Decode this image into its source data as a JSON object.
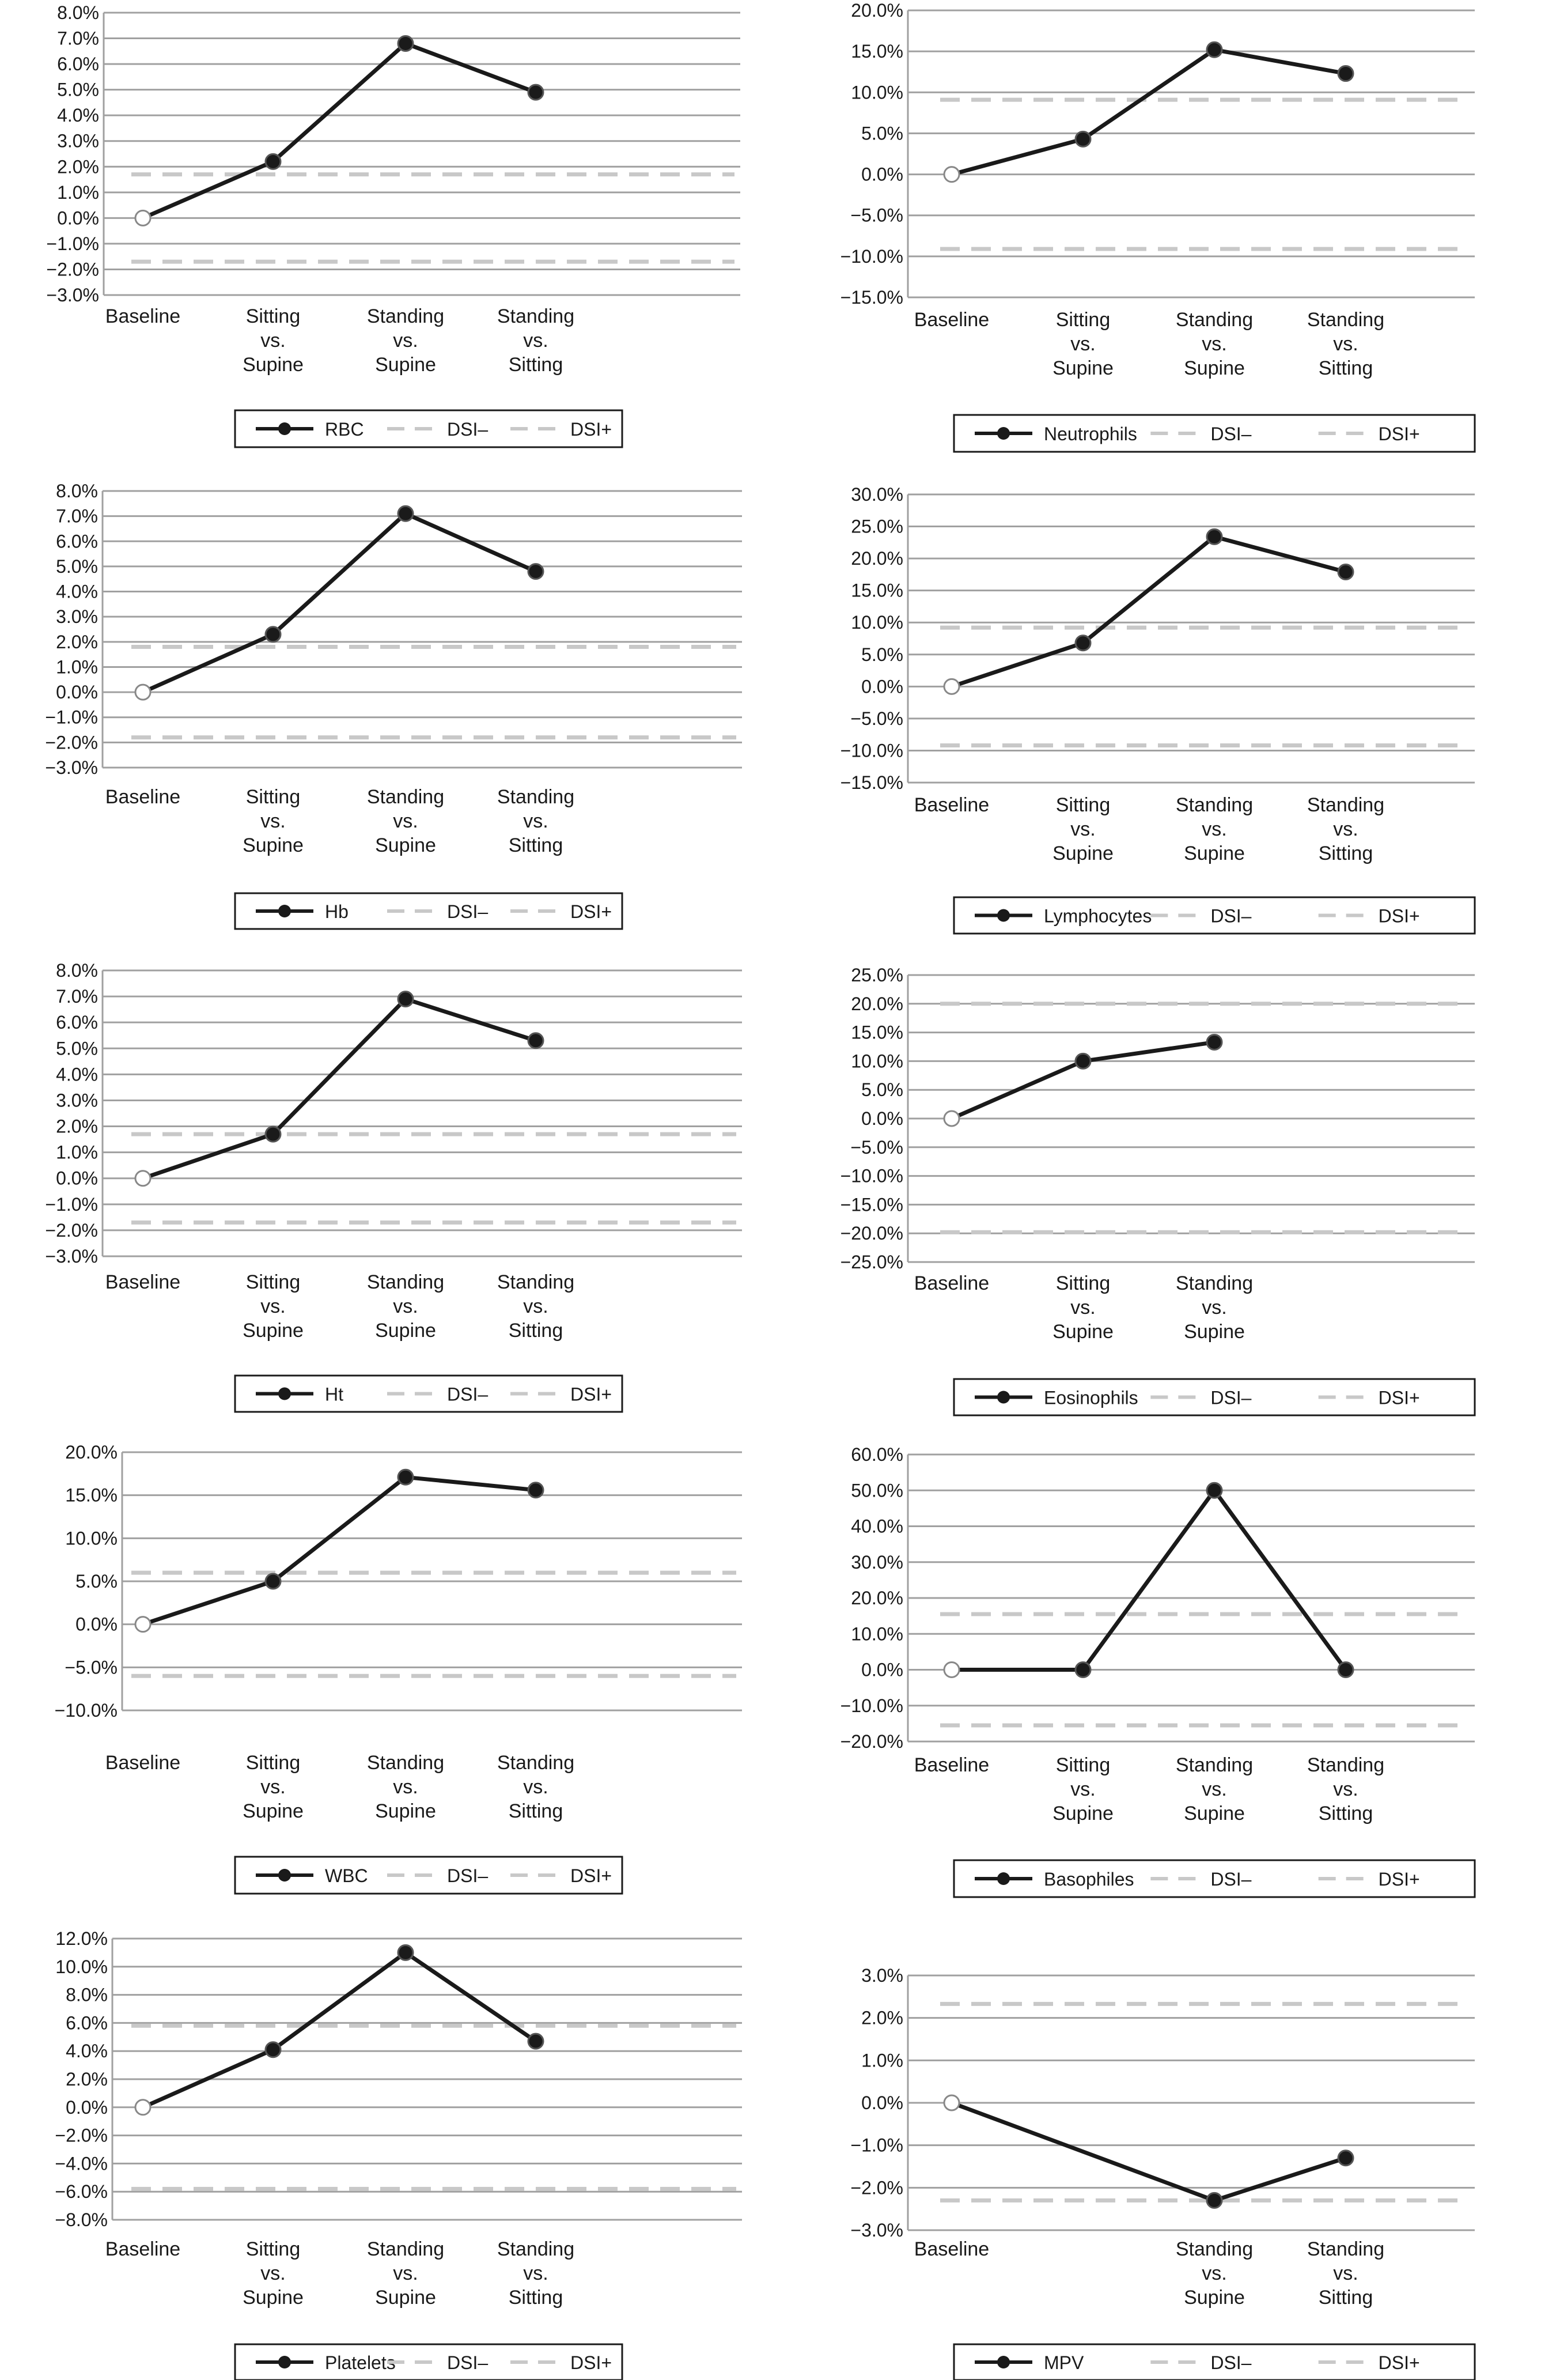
{
  "colors": {
    "series_line": "#1a1a1a",
    "marker_fill": "#1a1a1a",
    "baseline_marker_fill": "#ffffff",
    "dsi_line": "#c8c8c8",
    "gridline": "#a0a0a0",
    "axis_text": "#1a1a1a"
  },
  "chart_data": [
    {
      "type": "line",
      "categories": [
        [
          "Baseline"
        ],
        [
          "Sitting",
          "vs.",
          "Supine"
        ],
        [
          "Standing",
          "vs.",
          "Supine"
        ],
        [
          "Standing",
          "vs.",
          "Sitting"
        ]
      ],
      "series": [
        {
          "name": "RBC",
          "values": [
            0.0,
            2.2,
            6.8,
            4.9
          ]
        }
      ],
      "dsi_minus": -1.7,
      "dsi_plus": 1.7,
      "ylim": [
        -3,
        8
      ],
      "ytick_step": 1,
      "tick_decimals": 1,
      "legend": [
        "RBC",
        "DSI–",
        "DSI+"
      ],
      "grid": true
    },
    {
      "type": "line",
      "categories": [
        [
          "Baseline"
        ],
        [
          "Sitting",
          "vs.",
          "Supine"
        ],
        [
          "Standing",
          "vs.",
          "Supine"
        ],
        [
          "Standing",
          "vs.",
          "Sitting"
        ]
      ],
      "series": [
        {
          "name": "Neutrophils",
          "values": [
            0.0,
            4.3,
            15.2,
            12.3
          ]
        }
      ],
      "dsi_minus": -9.1,
      "dsi_plus": 9.1,
      "ylim": [
        -15,
        20
      ],
      "ytick_step": 5,
      "tick_decimals": 1,
      "legend": [
        "Neutrophils",
        "DSI–",
        "DSI+"
      ],
      "grid": true
    },
    {
      "type": "line",
      "categories": [
        [
          "Baseline"
        ],
        [
          "Sitting",
          "vs.",
          "Supine"
        ],
        [
          "Standing",
          "vs.",
          "Supine"
        ],
        [
          "Standing",
          "vs.",
          "Sitting"
        ]
      ],
      "series": [
        {
          "name": "Hb",
          "values": [
            0.0,
            2.3,
            7.1,
            4.8
          ]
        }
      ],
      "dsi_minus": -1.8,
      "dsi_plus": 1.8,
      "ylim": [
        -3,
        8
      ],
      "ytick_step": 1,
      "tick_decimals": 1,
      "legend": [
        "Hb",
        "DSI–",
        "DSI+"
      ],
      "grid": true
    },
    {
      "type": "line",
      "categories": [
        [
          "Baseline"
        ],
        [
          "Sitting",
          "vs.",
          "Supine"
        ],
        [
          "Standing",
          "vs.",
          "Supine"
        ],
        [
          "Standing",
          "vs.",
          "Sitting"
        ]
      ],
      "series": [
        {
          "name": "Lymphocytes",
          "values": [
            0.0,
            6.8,
            23.4,
            17.9
          ]
        }
      ],
      "dsi_minus": -9.2,
      "dsi_plus": 9.2,
      "ylim": [
        -15,
        30
      ],
      "ytick_step": 5,
      "tick_decimals": 1,
      "legend": [
        "Lymphocytes",
        "DSI–",
        "DSI+"
      ],
      "grid": true
    },
    {
      "type": "line",
      "categories": [
        [
          "Baseline"
        ],
        [
          "Sitting",
          "vs.",
          "Supine"
        ],
        [
          "Standing",
          "vs.",
          "Supine"
        ],
        [
          "Standing",
          "vs.",
          "Sitting"
        ]
      ],
      "series": [
        {
          "name": "Ht",
          "values": [
            0.0,
            1.7,
            6.9,
            5.3
          ]
        }
      ],
      "dsi_minus": -1.7,
      "dsi_plus": 1.7,
      "ylim": [
        -3,
        8
      ],
      "ytick_step": 1,
      "tick_decimals": 1,
      "legend": [
        "Ht",
        "DSI–",
        "DSI+"
      ],
      "grid": true
    },
    {
      "type": "line",
      "categories": [
        [
          "Baseline"
        ],
        [
          "Sitting",
          "vs.",
          "Supine"
        ],
        [
          "Standing",
          "vs.",
          "Supine"
        ]
      ],
      "series": [
        {
          "name": "Eosinophils",
          "values": [
            0.0,
            10.0,
            13.3
          ]
        }
      ],
      "dsi_minus": -19.8,
      "dsi_plus": 20.0,
      "ylim": [
        -25,
        25
      ],
      "ytick_step": 5,
      "tick_decimals": 1,
      "legend": [
        "Eosinophils",
        "DSI–",
        "DSI+"
      ],
      "grid": true
    },
    {
      "type": "line",
      "categories": [
        [
          "Baseline"
        ],
        [
          "Sitting",
          "vs.",
          "Supine"
        ],
        [
          "Standing",
          "vs.",
          "Supine"
        ],
        [
          "Standing",
          "vs.",
          "Sitting"
        ]
      ],
      "series": [
        {
          "name": "WBC",
          "values": [
            0.0,
            5.0,
            17.1,
            15.6
          ]
        }
      ],
      "dsi_minus": -6.0,
      "dsi_plus": 6.0,
      "ylim": [
        -10,
        20
      ],
      "ytick_step": 5,
      "tick_decimals": 1,
      "legend": [
        "WBC",
        "DSI–",
        "DSI+"
      ],
      "grid": true
    },
    {
      "type": "line",
      "categories": [
        [
          "Baseline"
        ],
        [
          "Sitting",
          "vs.",
          "Supine"
        ],
        [
          "Standing",
          "vs.",
          "Supine"
        ],
        [
          "Standing",
          "vs.",
          "Sitting"
        ]
      ],
      "series": [
        {
          "name": "Basophiles",
          "values": [
            0.0,
            0.0,
            50.0,
            0.0
          ]
        }
      ],
      "dsi_minus": -15.5,
      "dsi_plus": 15.5,
      "ylim": [
        -20,
        60
      ],
      "ytick_step": 10,
      "tick_decimals": 1,
      "legend": [
        "Basophiles",
        "DSI–",
        "DSI+"
      ],
      "grid": true
    },
    {
      "type": "line",
      "categories": [
        [
          "Baseline"
        ],
        [
          "Sitting",
          "vs.",
          "Supine"
        ],
        [
          "Standing",
          "vs.",
          "Supine"
        ],
        [
          "Standing",
          "vs.",
          "Sitting"
        ]
      ],
      "series": [
        {
          "name": "Platelets",
          "values": [
            0.0,
            4.1,
            11.0,
            4.7
          ]
        }
      ],
      "dsi_minus": -5.8,
      "dsi_plus": 5.8,
      "ylim": [
        -8,
        12
      ],
      "ytick_step": 2,
      "tick_decimals": 1,
      "legend": [
        "Platelets",
        "DSI–",
        "DSI+"
      ],
      "grid": true
    },
    {
      "type": "line",
      "categories": [
        [
          "Baseline"
        ],
        [],
        [
          "Standing",
          "vs.",
          "Supine"
        ],
        [
          "Standing",
          "vs.",
          "Sitting"
        ]
      ],
      "series": [
        {
          "name": "MPV",
          "values": [
            0.0,
            null,
            -2.3,
            -1.3
          ]
        }
      ],
      "dsi_minus": -2.3,
      "dsi_plus": 2.33,
      "ylim": [
        -3,
        3
      ],
      "ytick_step": 1,
      "tick_decimals": 1,
      "legend": [
        "MPV",
        "DSI–",
        "DSI+"
      ],
      "grid": true
    }
  ]
}
